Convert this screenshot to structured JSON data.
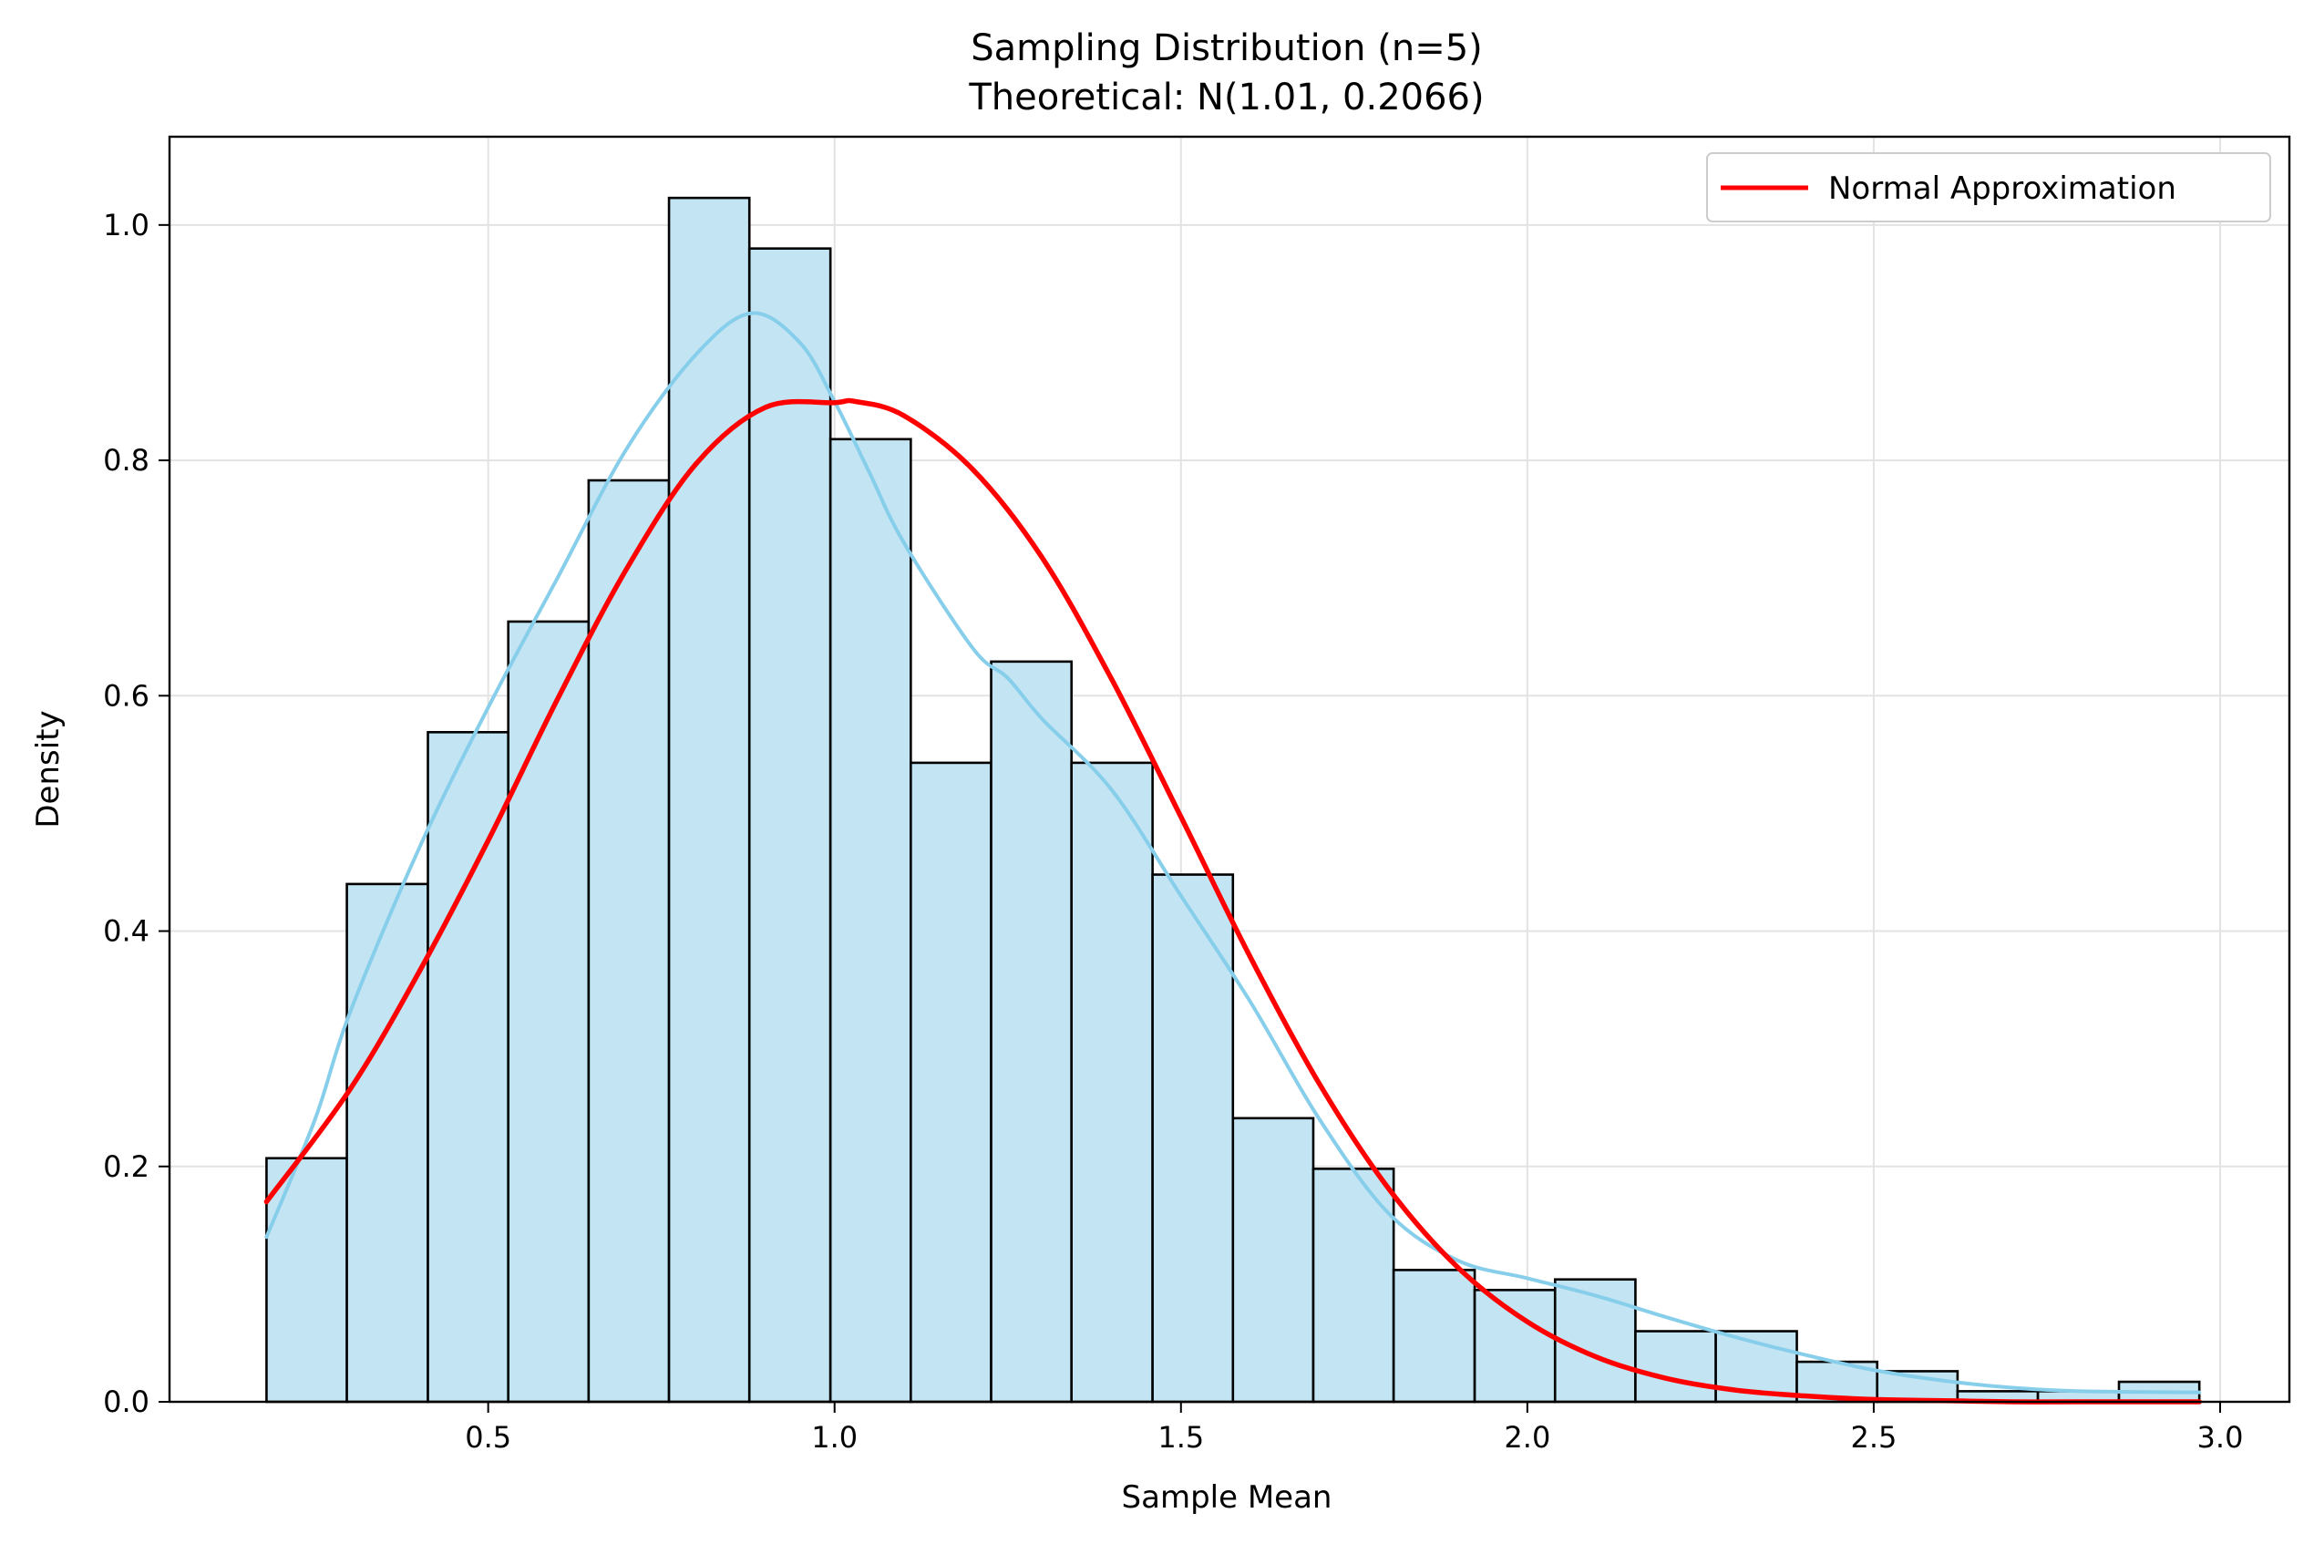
{
  "chart_data": {
    "type": "bar",
    "title": "Sampling Distribution (n=5)",
    "subtitle": "Theoretical: N(1.01, 0.2066)",
    "xlabel": "Sample Mean",
    "ylabel": "Density",
    "xlim": [
      0.04,
      3.1
    ],
    "ylim": [
      0.0,
      1.075
    ],
    "xticks": [
      0.5,
      1.0,
      1.5,
      2.0,
      2.5,
      3.0
    ],
    "xtick_labels": [
      "0.5",
      "1.0",
      "1.5",
      "2.0",
      "2.5",
      "3.0"
    ],
    "yticks": [
      0.0,
      0.2,
      0.4,
      0.6,
      0.8,
      1.0
    ],
    "ytick_labels": [
      "0.0",
      "0.2",
      "0.4",
      "0.6",
      "0.8",
      "1.0"
    ],
    "grid": true,
    "legend_position": "top-right",
    "histogram": {
      "bin_edges": [
        0.18,
        0.296,
        0.413,
        0.529,
        0.645,
        0.761,
        0.877,
        0.994,
        1.11,
        1.226,
        1.342,
        1.459,
        1.575,
        1.691,
        1.807,
        1.924,
        2.04,
        2.156,
        2.272,
        2.389,
        2.505,
        2.621,
        2.737,
        2.854,
        2.97
      ],
      "density": [
        0.207,
        0.44,
        0.569,
        0.663,
        0.783,
        1.023,
        0.98,
        0.818,
        0.543,
        0.629,
        0.543,
        0.448,
        0.241,
        0.198,
        0.112,
        0.095,
        0.104,
        0.06,
        0.06,
        0.034,
        0.026,
        0.009,
        0.009,
        0.017
      ],
      "fill_color": "#c2e4f3",
      "edge_color": "#000000"
    },
    "series": [
      {
        "name": "Normal Approximation",
        "kind": "line",
        "color": "#ff0000",
        "x": [
          0.18,
          0.3,
          0.4,
          0.5,
          0.6,
          0.7,
          0.8,
          0.9,
          1.0,
          1.03,
          1.1,
          1.2,
          1.3,
          1.4,
          1.5,
          1.6,
          1.7,
          1.8,
          1.9,
          2.0,
          2.1,
          2.2,
          2.3,
          2.4,
          2.5,
          2.6,
          2.7,
          2.8,
          2.97
        ],
        "y": [
          0.17,
          0.265,
          0.365,
          0.477,
          0.597,
          0.708,
          0.797,
          0.845,
          0.849,
          0.85,
          0.838,
          0.792,
          0.717,
          0.614,
          0.497,
          0.378,
          0.27,
          0.181,
          0.114,
          0.068,
          0.038,
          0.02,
          0.01,
          0.005,
          0.002,
          0.001,
          0.0,
          0.0,
          0.0
        ]
      },
      {
        "kind": "kde",
        "color": "#87ceeb",
        "x": [
          0.18,
          0.25,
          0.3,
          0.4,
          0.5,
          0.6,
          0.7,
          0.8,
          0.88,
          0.95,
          1.0,
          1.05,
          1.1,
          1.2,
          1.25,
          1.3,
          1.4,
          1.5,
          1.6,
          1.7,
          1.8,
          1.9,
          2.0,
          2.1,
          2.2,
          2.3,
          2.4,
          2.5,
          2.6,
          2.7,
          2.8,
          2.97
        ],
        "y": [
          0.14,
          0.24,
          0.33,
          0.47,
          0.59,
          0.7,
          0.81,
          0.89,
          0.925,
          0.9,
          0.85,
          0.79,
          0.73,
          0.64,
          0.615,
          0.58,
          0.52,
          0.43,
          0.34,
          0.24,
          0.16,
          0.12,
          0.105,
          0.09,
          0.072,
          0.055,
          0.04,
          0.027,
          0.018,
          0.012,
          0.009,
          0.008
        ]
      }
    ]
  }
}
